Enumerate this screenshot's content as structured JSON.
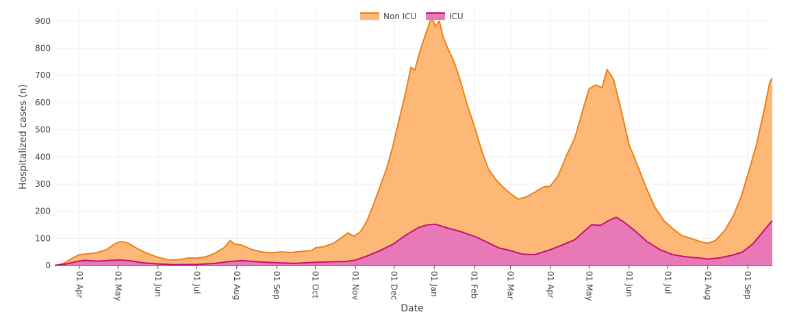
{
  "chart_data": {
    "type": "area",
    "title": "",
    "xlabel": "Date",
    "ylabel": "Hospitalized cases (n)",
    "ylim": [
      0,
      950
    ],
    "yticks": [
      0,
      100,
      200,
      300,
      400,
      500,
      600,
      700,
      800,
      900
    ],
    "x_start": "2020-03-13",
    "x_end": "2021-09-20",
    "x_ticks": [
      {
        "label": "01 Apr",
        "date": "2020-04-01"
      },
      {
        "label": "01 May",
        "date": "2020-05-01"
      },
      {
        "label": "01 Jun",
        "date": "2020-06-01"
      },
      {
        "label": "01 Jul",
        "date": "2020-07-01"
      },
      {
        "label": "01 Aug",
        "date": "2020-08-01"
      },
      {
        "label": "01 Sep",
        "date": "2020-09-01"
      },
      {
        "label": "01 Oct",
        "date": "2020-10-01"
      },
      {
        "label": "01 Nov",
        "date": "2020-11-01"
      },
      {
        "label": "01 Dec",
        "date": "2020-12-01"
      },
      {
        "label": "01 Jan",
        "date": "2021-01-01"
      },
      {
        "label": "01 Feb",
        "date": "2021-02-01"
      },
      {
        "label": "01 Mar",
        "date": "2021-03-01"
      },
      {
        "label": "01 Apr",
        "date": "2021-04-01"
      },
      {
        "label": "01 May",
        "date": "2021-05-01"
      },
      {
        "label": "01 Jun",
        "date": "2021-06-01"
      },
      {
        "label": "01 Jul",
        "date": "2021-07-01"
      },
      {
        "label": "01 Aug",
        "date": "2021-08-01"
      },
      {
        "label": "01 Sep",
        "date": "2021-09-01"
      }
    ],
    "grid": true,
    "legend_position": "top-center",
    "series": [
      {
        "name": "Non ICU",
        "line_color": "#f07f10",
        "fill_color": "#fdb878",
        "points": [
          [
            "2020-03-13",
            0
          ],
          [
            "2020-03-20",
            8
          ],
          [
            "2020-03-27",
            28
          ],
          [
            "2020-04-01",
            40
          ],
          [
            "2020-04-08",
            43
          ],
          [
            "2020-04-15",
            48
          ],
          [
            "2020-04-22",
            58
          ],
          [
            "2020-04-28",
            78
          ],
          [
            "2020-05-01",
            85
          ],
          [
            "2020-05-04",
            88
          ],
          [
            "2020-05-09",
            82
          ],
          [
            "2020-05-15",
            65
          ],
          [
            "2020-05-22",
            48
          ],
          [
            "2020-06-01",
            30
          ],
          [
            "2020-06-10",
            20
          ],
          [
            "2020-06-18",
            22
          ],
          [
            "2020-06-25",
            28
          ],
          [
            "2020-07-01",
            27
          ],
          [
            "2020-07-08",
            32
          ],
          [
            "2020-07-15",
            45
          ],
          [
            "2020-07-22",
            65
          ],
          [
            "2020-07-27",
            92
          ],
          [
            "2020-07-30",
            80
          ],
          [
            "2020-08-05",
            75
          ],
          [
            "2020-08-12",
            60
          ],
          [
            "2020-08-20",
            50
          ],
          [
            "2020-08-28",
            47
          ],
          [
            "2020-09-05",
            50
          ],
          [
            "2020-09-12",
            48
          ],
          [
            "2020-09-20",
            52
          ],
          [
            "2020-09-28",
            55
          ],
          [
            "2020-10-01",
            65
          ],
          [
            "2020-10-08",
            70
          ],
          [
            "2020-10-15",
            82
          ],
          [
            "2020-10-22",
            105
          ],
          [
            "2020-10-26",
            120
          ],
          [
            "2020-10-31",
            108
          ],
          [
            "2020-11-05",
            125
          ],
          [
            "2020-11-10",
            165
          ],
          [
            "2020-11-15",
            225
          ],
          [
            "2020-11-20",
            290
          ],
          [
            "2020-11-25",
            355
          ],
          [
            "2020-11-30",
            440
          ],
          [
            "2020-12-05",
            540
          ],
          [
            "2020-12-10",
            640
          ],
          [
            "2020-12-14",
            730
          ],
          [
            "2020-12-17",
            720
          ],
          [
            "2020-12-21",
            790
          ],
          [
            "2020-12-26",
            860
          ],
          [
            "2020-12-30",
            915
          ],
          [
            "2021-01-02",
            880
          ],
          [
            "2021-01-05",
            900
          ],
          [
            "2021-01-08",
            840
          ],
          [
            "2021-01-12",
            795
          ],
          [
            "2021-01-16",
            755
          ],
          [
            "2021-01-21",
            685
          ],
          [
            "2021-01-26",
            600
          ],
          [
            "2021-02-01",
            515
          ],
          [
            "2021-02-07",
            420
          ],
          [
            "2021-02-12",
            355
          ],
          [
            "2021-02-18",
            315
          ],
          [
            "2021-02-23",
            290
          ],
          [
            "2021-03-01",
            265
          ],
          [
            "2021-03-07",
            245
          ],
          [
            "2021-03-13",
            252
          ],
          [
            "2021-03-20",
            270
          ],
          [
            "2021-03-27",
            290
          ],
          [
            "2021-04-01",
            292
          ],
          [
            "2021-04-07",
            330
          ],
          [
            "2021-04-14",
            410
          ],
          [
            "2021-04-20",
            470
          ],
          [
            "2021-04-26",
            570
          ],
          [
            "2021-05-01",
            650
          ],
          [
            "2021-05-06",
            665
          ],
          [
            "2021-05-11",
            655
          ],
          [
            "2021-05-15",
            722
          ],
          [
            "2021-05-20",
            685
          ],
          [
            "2021-05-26",
            570
          ],
          [
            "2021-06-01",
            445
          ],
          [
            "2021-06-07",
            375
          ],
          [
            "2021-06-14",
            290
          ],
          [
            "2021-06-21",
            215
          ],
          [
            "2021-06-28",
            165
          ],
          [
            "2021-07-05",
            135
          ],
          [
            "2021-07-12",
            110
          ],
          [
            "2021-07-19",
            100
          ],
          [
            "2021-07-26",
            88
          ],
          [
            "2021-08-01",
            82
          ],
          [
            "2021-08-07",
            92
          ],
          [
            "2021-08-14",
            128
          ],
          [
            "2021-08-21",
            185
          ],
          [
            "2021-08-27",
            255
          ],
          [
            "2021-09-02",
            350
          ],
          [
            "2021-09-08",
            450
          ],
          [
            "2021-09-14",
            580
          ],
          [
            "2021-09-18",
            675
          ],
          [
            "2021-09-20",
            690
          ]
        ]
      },
      {
        "name": "ICU",
        "line_color": "#c0117a",
        "fill_color": "#e878b6",
        "points": [
          [
            "2020-03-13",
            0
          ],
          [
            "2020-03-22",
            6
          ],
          [
            "2020-03-30",
            15
          ],
          [
            "2020-04-05",
            19
          ],
          [
            "2020-04-15",
            16
          ],
          [
            "2020-04-25",
            19
          ],
          [
            "2020-05-03",
            20
          ],
          [
            "2020-05-10",
            18
          ],
          [
            "2020-05-20",
            10
          ],
          [
            "2020-06-01",
            6
          ],
          [
            "2020-06-15",
            3
          ],
          [
            "2020-07-01",
            4
          ],
          [
            "2020-07-15",
            8
          ],
          [
            "2020-07-25",
            14
          ],
          [
            "2020-08-05",
            18
          ],
          [
            "2020-08-20",
            13
          ],
          [
            "2020-09-01",
            10
          ],
          [
            "2020-09-15",
            8
          ],
          [
            "2020-10-01",
            12
          ],
          [
            "2020-10-15",
            14
          ],
          [
            "2020-10-25",
            15
          ],
          [
            "2020-11-01",
            20
          ],
          [
            "2020-11-10",
            35
          ],
          [
            "2020-11-20",
            55
          ],
          [
            "2020-11-30",
            78
          ],
          [
            "2020-12-10",
            112
          ],
          [
            "2020-12-20",
            140
          ],
          [
            "2020-12-27",
            150
          ],
          [
            "2021-01-02",
            152
          ],
          [
            "2021-01-10",
            140
          ],
          [
            "2021-01-20",
            127
          ],
          [
            "2021-02-01",
            108
          ],
          [
            "2021-02-10",
            88
          ],
          [
            "2021-02-20",
            65
          ],
          [
            "2021-03-01",
            55
          ],
          [
            "2021-03-10",
            42
          ],
          [
            "2021-03-20",
            40
          ],
          [
            "2021-04-01",
            58
          ],
          [
            "2021-04-10",
            75
          ],
          [
            "2021-04-20",
            95
          ],
          [
            "2021-04-27",
            125
          ],
          [
            "2021-05-03",
            150
          ],
          [
            "2021-05-10",
            148
          ],
          [
            "2021-05-16",
            165
          ],
          [
            "2021-05-22",
            178
          ],
          [
            "2021-05-28",
            160
          ],
          [
            "2021-06-05",
            130
          ],
          [
            "2021-06-15",
            88
          ],
          [
            "2021-06-25",
            58
          ],
          [
            "2021-07-05",
            40
          ],
          [
            "2021-07-15",
            32
          ],
          [
            "2021-07-25",
            28
          ],
          [
            "2021-08-01",
            24
          ],
          [
            "2021-08-10",
            28
          ],
          [
            "2021-08-20",
            38
          ],
          [
            "2021-08-28",
            50
          ],
          [
            "2021-09-05",
            80
          ],
          [
            "2021-09-12",
            120
          ],
          [
            "2021-09-18",
            155
          ],
          [
            "2021-09-20",
            165
          ]
        ]
      }
    ]
  }
}
